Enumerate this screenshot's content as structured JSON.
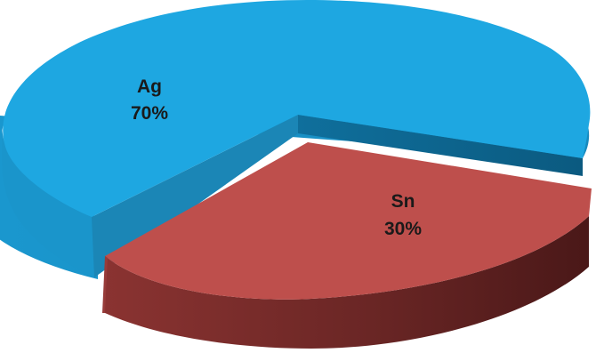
{
  "chart_data": {
    "type": "pie",
    "style": "3d-exploded",
    "slices": [
      {
        "label": "Ag",
        "value": 70,
        "value_label": "70%",
        "color": "#1ea7e1"
      },
      {
        "label": "Sn",
        "value": 30,
        "value_label": "30%",
        "color": "#be4f4c"
      }
    ],
    "title": "",
    "legend": "none"
  }
}
